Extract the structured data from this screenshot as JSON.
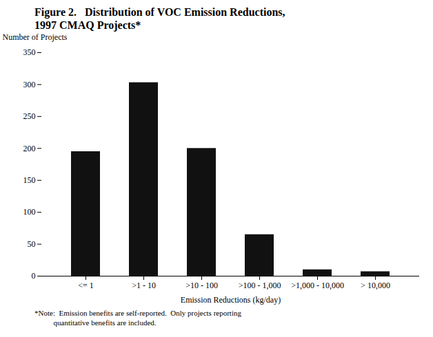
{
  "chart_data": {
    "type": "bar",
    "title": [
      "Figure 2.   Distribution of VOC Emission Reductions,",
      "1997 CMAQ Projects*"
    ],
    "categories": [
      "<= 1",
      ">1 - 10",
      ">10 - 100",
      ">100 - 1,000",
      ">1,000 - 10,000",
      "> 10,000"
    ],
    "values": [
      195,
      303,
      200,
      65,
      10,
      7
    ],
    "color": "#111111",
    "xlabel": "Emission Reductions (kg/day)",
    "ylabel": "Number of Projects",
    "ylim": [
      0,
      350
    ],
    "yticks": [
      0,
      50,
      100,
      150,
      200,
      250,
      300,
      350
    ],
    "grid": false,
    "annotations": [
      "*Note:  Emission benefits are self-reported.  Only projects reporting",
      "          quantitative benefits are included."
    ]
  }
}
